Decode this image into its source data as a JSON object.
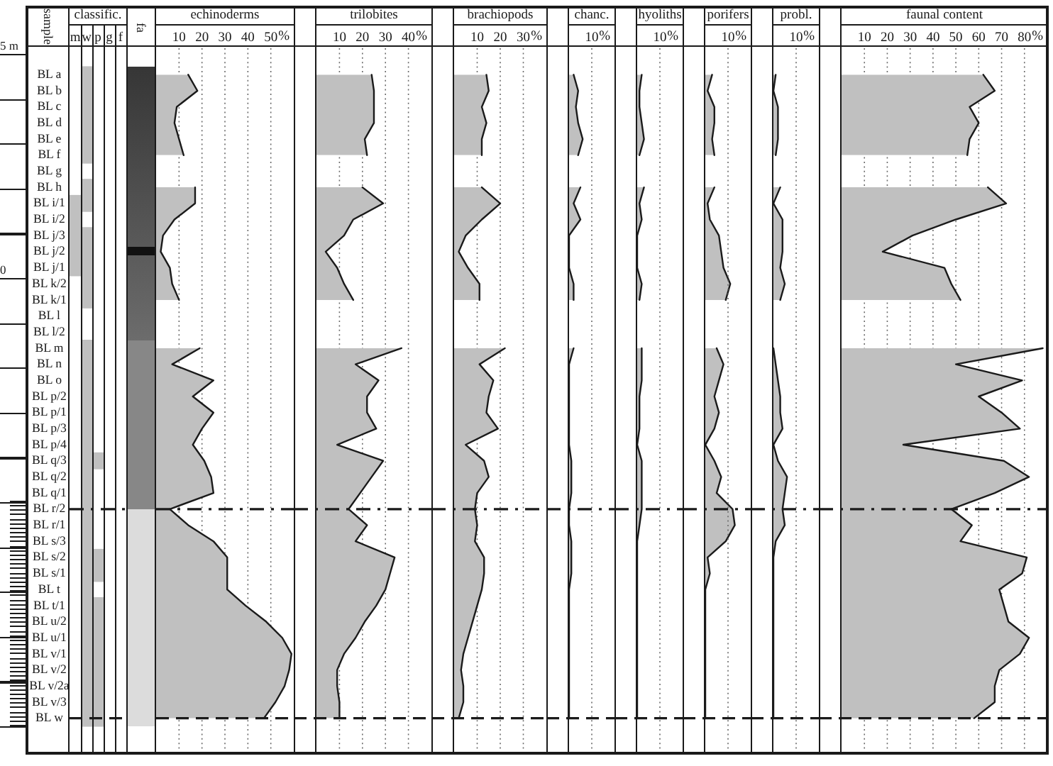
{
  "chart_data": [
    {
      "type": "heatmap",
      "title": "classific.",
      "ylabel": "sample",
      "categories": [
        "m",
        "w",
        "p",
        "g",
        "f"
      ],
      "y_categories": [
        "BL a",
        "BL b",
        "BL c",
        "BL d",
        "BL e",
        "BL f",
        "BL g",
        "BL h",
        "BL i/1",
        "BL i/2",
        "BL j/3",
        "BL j/2",
        "BL j/1",
        "BL k/2",
        "BL k/1",
        "BL l",
        "BL l/2",
        "BL m",
        "BL n",
        "BL o",
        "BL p/2",
        "BL p/1",
        "BL p/3",
        "BL p/4",
        "BL q/3",
        "BL q/2",
        "BL q/1",
        "BL r/2",
        "BL r/1",
        "BL s/3",
        "BL s/2",
        "BL s/1",
        "BL t",
        "BL t/1",
        "BL u/2",
        "BL u/1",
        "BL v/1",
        "BL v/2",
        "BL v/2a",
        "BL v/3",
        "BL w"
      ],
      "cells": [
        [
          null,
          true,
          null,
          null,
          null
        ],
        [
          null,
          true,
          null,
          null,
          null
        ],
        [
          null,
          true,
          null,
          null,
          null
        ],
        [
          null,
          true,
          null,
          null,
          null
        ],
        [
          null,
          true,
          null,
          null,
          null
        ],
        [
          null,
          true,
          null,
          null,
          null
        ],
        [
          null,
          null,
          null,
          null,
          null
        ],
        [
          null,
          true,
          null,
          null,
          null
        ],
        [
          true,
          true,
          null,
          null,
          null
        ],
        [
          true,
          null,
          null,
          null,
          null
        ],
        [
          true,
          true,
          null,
          null,
          null
        ],
        [
          true,
          true,
          null,
          null,
          null
        ],
        [
          true,
          true,
          null,
          null,
          null
        ],
        [
          null,
          true,
          null,
          null,
          null
        ],
        [
          null,
          true,
          null,
          null,
          null
        ],
        [
          null,
          null,
          null,
          null,
          null
        ],
        [
          null,
          null,
          null,
          null,
          null
        ],
        [
          null,
          true,
          null,
          null,
          null
        ],
        [
          null,
          true,
          null,
          null,
          null
        ],
        [
          null,
          true,
          null,
          null,
          null
        ],
        [
          null,
          true,
          null,
          null,
          null
        ],
        [
          null,
          true,
          null,
          null,
          null
        ],
        [
          null,
          true,
          null,
          null,
          null
        ],
        [
          null,
          true,
          null,
          null,
          null
        ],
        [
          null,
          true,
          true,
          null,
          null
        ],
        [
          null,
          true,
          null,
          null,
          null
        ],
        [
          null,
          true,
          null,
          null,
          null
        ],
        [
          null,
          true,
          null,
          null,
          null
        ],
        [
          null,
          true,
          null,
          null,
          null
        ],
        [
          null,
          true,
          null,
          null,
          null
        ],
        [
          null,
          true,
          true,
          null,
          null
        ],
        [
          null,
          true,
          true,
          null,
          null
        ],
        [
          null,
          true,
          null,
          null,
          null
        ],
        [
          null,
          true,
          true,
          null,
          null
        ],
        [
          null,
          true,
          true,
          null,
          null
        ],
        [
          null,
          true,
          true,
          null,
          null
        ],
        [
          null,
          true,
          true,
          null,
          null
        ],
        [
          null,
          true,
          true,
          null,
          null
        ],
        [
          null,
          true,
          true,
          null,
          null
        ],
        [
          null,
          true,
          true,
          null,
          null
        ],
        [
          null,
          true,
          true,
          null,
          null
        ]
      ],
      "color": "#c0c0c0",
      "ref_lines": [
        {
          "axis": "y",
          "value": "BL r/2",
          "line_style": "dashdot"
        },
        {
          "axis": "y",
          "value": "BL w",
          "line_style": "dashed"
        }
      ],
      "annotations": [
        "5 m",
        "0"
      ]
    },
    {
      "type": "other",
      "title": "fa"
    },
    {
      "type": "area",
      "orientation": "horizontal",
      "title": "echinoderms",
      "xlabel": "%",
      "categories": [
        "BL a",
        "BL b",
        "BL c",
        "BL d",
        "BL e",
        "BL f",
        "BL g",
        "BL h",
        "BL i/1",
        "BL i/2",
        "BL j/3",
        "BL j/2",
        "BL j/1",
        "BL k/2",
        "BL k/1",
        "BL l",
        "BL l/2",
        "BL m",
        "BL n",
        "BL o",
        "BL p/2",
        "BL p/1",
        "BL p/3",
        "BL p/4",
        "BL q/3",
        "BL q/2",
        "BL q/1",
        "BL r/2",
        "BL r/1",
        "BL s/3",
        "BL s/2",
        "BL s/1",
        "BL t",
        "BL t/1",
        "BL u/2",
        "BL u/1",
        "BL v/1",
        "BL v/2",
        "BL v/2a",
        "BL v/3",
        "BL w"
      ],
      "values": [
        14,
        18,
        9,
        8,
        10,
        12,
        null,
        17,
        17,
        8,
        3,
        2,
        6,
        7,
        10,
        null,
        null,
        19,
        7,
        25,
        16,
        25,
        20,
        16,
        21,
        24,
        25,
        6,
        14,
        25,
        31,
        31,
        31,
        39,
        48,
        55,
        59,
        58,
        56,
        52,
        47
      ],
      "color": "#c0c0c0",
      "xlim": [
        0,
        60
      ],
      "xticks": [
        10,
        20,
        30,
        40,
        50
      ],
      "grid": "x",
      "tick_labels": "x",
      "ref_lines": [
        {
          "axis": "y",
          "value": "BL r/2",
          "line_style": "dashdot"
        },
        {
          "axis": "y",
          "value": "BL w",
          "line_style": "dashed"
        }
      ]
    },
    {
      "type": "area",
      "orientation": "horizontal",
      "title": "trilobites",
      "xlabel": "%",
      "categories": [
        "BL a",
        "BL b",
        "BL c",
        "BL d",
        "BL e",
        "BL f",
        "BL g",
        "BL h",
        "BL i/1",
        "BL i/2",
        "BL j/3",
        "BL j/2",
        "BL j/1",
        "BL k/2",
        "BL k/1",
        "BL l",
        "BL l/2",
        "BL m",
        "BL n",
        "BL o",
        "BL p/2",
        "BL p/1",
        "BL p/3",
        "BL p/4",
        "BL q/3",
        "BL q/2",
        "BL q/1",
        "BL r/2",
        "BL r/1",
        "BL s/3",
        "BL s/2",
        "BL s/1",
        "BL t",
        "BL t/1",
        "BL u/2",
        "BL u/1",
        "BL v/1",
        "BL v/2",
        "BL v/2a",
        "BL v/3",
        "BL w"
      ],
      "values": [
        24,
        25,
        25,
        25,
        21,
        22,
        null,
        20,
        29,
        16,
        12,
        4,
        9,
        12,
        16,
        null,
        null,
        37,
        17,
        27,
        22,
        22,
        26,
        9,
        29,
        24,
        19,
        14,
        22,
        17,
        34,
        32,
        30,
        26,
        21,
        17,
        12,
        9,
        9,
        10,
        10
      ],
      "color": "#c0c0c0",
      "xlim": [
        0,
        50
      ],
      "xticks": [
        10,
        20,
        30,
        40
      ],
      "grid": "x",
      "tick_labels": "x",
      "ref_lines": [
        {
          "axis": "y",
          "value": "BL r/2",
          "line_style": "dashdot"
        },
        {
          "axis": "y",
          "value": "BL w",
          "line_style": "dashed"
        }
      ]
    },
    {
      "type": "area",
      "orientation": "horizontal",
      "title": "brachiopods",
      "xlabel": "%",
      "categories": [
        "BL a",
        "BL b",
        "BL c",
        "BL d",
        "BL e",
        "BL f",
        "BL g",
        "BL h",
        "BL i/1",
        "BL i/2",
        "BL j/3",
        "BL j/2",
        "BL j/1",
        "BL k/2",
        "BL k/1",
        "BL l",
        "BL l/2",
        "BL m",
        "BL n",
        "BL o",
        "BL p/2",
        "BL p/1",
        "BL p/3",
        "BL p/4",
        "BL q/3",
        "BL q/2",
        "BL q/1",
        "BL r/2",
        "BL r/1",
        "BL s/3",
        "BL s/2",
        "BL s/1",
        "BL t",
        "BL t/1",
        "BL u/2",
        "BL u/1",
        "BL v/1",
        "BL v/2",
        "BL v/2a",
        "BL v/3",
        "BL w"
      ],
      "values": [
        14,
        15,
        12,
        14,
        12,
        12,
        null,
        12,
        20,
        12,
        5,
        2,
        6,
        11,
        11,
        null,
        null,
        22,
        11,
        17,
        15,
        14,
        19,
        5,
        13,
        15,
        10,
        9,
        10,
        9,
        13,
        13,
        12,
        10,
        8,
        6,
        4,
        3,
        4,
        4,
        2
      ],
      "color": "#c0c0c0",
      "xlim": [
        0,
        40
      ],
      "xticks": [
        10,
        20,
        30
      ],
      "grid": "x",
      "tick_labels": "x",
      "ref_lines": [
        {
          "axis": "y",
          "value": "BL r/2",
          "line_style": "dashdot"
        },
        {
          "axis": "y",
          "value": "BL w",
          "line_style": "dashed"
        }
      ]
    },
    {
      "type": "area",
      "orientation": "horizontal",
      "title": "chanc.",
      "xlabel": "%",
      "categories": [
        "BL a",
        "BL b",
        "BL c",
        "BL d",
        "BL e",
        "BL f",
        "BL g",
        "BL h",
        "BL i/1",
        "BL i/2",
        "BL j/3",
        "BL j/2",
        "BL j/1",
        "BL k/2",
        "BL k/1",
        "BL l",
        "BL l/2",
        "BL m",
        "BL n",
        "BL o",
        "BL p/2",
        "BL p/1",
        "BL p/3",
        "BL p/4",
        "BL q/3",
        "BL q/2",
        "BL q/1",
        "BL r/2",
        "BL r/1",
        "BL s/3",
        "BL s/2",
        "BL s/1",
        "BL t",
        "BL t/1",
        "BL u/2",
        "BL u/1",
        "BL v/1",
        "BL v/2",
        "BL v/2a",
        "BL v/3",
        "BL w"
      ],
      "values": [
        2,
        4,
        3,
        4,
        6,
        4,
        null,
        5,
        2,
        5,
        0,
        0,
        0,
        2,
        2,
        null,
        null,
        2,
        0,
        0,
        0,
        0,
        0,
        0,
        1,
        1,
        1,
        0,
        0,
        1,
        1,
        1,
        0,
        0,
        0,
        0,
        0,
        0,
        0,
        0,
        0
      ],
      "color": "#c0c0c0",
      "xlim": [
        0,
        20
      ],
      "xticks": [
        10
      ],
      "tick_labels": "x",
      "ref_lines": [
        {
          "axis": "x",
          "value": 10,
          "line_style": "dotted",
          "color": "#6a6a6a"
        },
        {
          "axis": "y",
          "value": "BL r/2",
          "line_style": "dashdot"
        },
        {
          "axis": "y",
          "value": "BL w",
          "line_style": "dashed"
        }
      ]
    },
    {
      "type": "area",
      "orientation": "horizontal",
      "title": "hyoliths",
      "xlabel": "%",
      "categories": [
        "BL a",
        "BL b",
        "BL c",
        "BL d",
        "BL e",
        "BL f",
        "BL g",
        "BL h",
        "BL i/1",
        "BL i/2",
        "BL j/3",
        "BL j/2",
        "BL j/1",
        "BL k/2",
        "BL k/1",
        "BL l",
        "BL l/2",
        "BL m",
        "BL n",
        "BL o",
        "BL p/2",
        "BL p/1",
        "BL p/3",
        "BL p/4",
        "BL q/3",
        "BL q/2",
        "BL q/1",
        "BL r/2",
        "BL r/1",
        "BL s/3",
        "BL s/2",
        "BL s/1",
        "BL t",
        "BL t/1",
        "BL u/2",
        "BL u/1",
        "BL v/1",
        "BL v/2",
        "BL v/2a",
        "BL v/3",
        "BL w"
      ],
      "values": [
        2,
        1,
        1,
        2,
        3,
        1,
        null,
        3,
        1,
        2,
        0,
        0,
        0,
        2,
        1,
        null,
        null,
        2,
        2,
        2,
        1,
        1,
        1,
        0,
        2,
        2,
        2,
        2,
        1,
        0,
        0,
        0,
        0,
        0,
        0,
        0,
        0,
        0,
        0,
        0,
        0
      ],
      "color": "#c0c0c0",
      "xlim": [
        0,
        20
      ],
      "xticks": [
        10
      ],
      "tick_labels": "x",
      "ref_lines": [
        {
          "axis": "x",
          "value": 10,
          "line_style": "dotted",
          "color": "#6a6a6a"
        },
        {
          "axis": "y",
          "value": "BL r/2",
          "line_style": "dashdot"
        },
        {
          "axis": "y",
          "value": "BL w",
          "line_style": "dashed"
        }
      ]
    },
    {
      "type": "area",
      "orientation": "horizontal",
      "title": "porifers",
      "xlabel": "%",
      "categories": [
        "BL a",
        "BL b",
        "BL c",
        "BL d",
        "BL e",
        "BL f",
        "BL g",
        "BL h",
        "BL i/1",
        "BL i/2",
        "BL j/3",
        "BL j/2",
        "BL j/1",
        "BL k/2",
        "BL k/1",
        "BL l",
        "BL l/2",
        "BL m",
        "BL n",
        "BL o",
        "BL p/2",
        "BL p/1",
        "BL p/3",
        "BL p/4",
        "BL q/3",
        "BL q/2",
        "BL q/1",
        "BL r/2",
        "BL r/1",
        "BL s/3",
        "BL s/2",
        "BL s/1",
        "BL t",
        "BL t/1",
        "BL u/2",
        "BL u/1",
        "BL v/1",
        "BL v/2",
        "BL v/2a",
        "BL v/3",
        "BL w"
      ],
      "values": [
        3,
        1,
        4,
        4,
        3,
        4,
        null,
        4,
        1,
        2,
        6,
        7,
        8,
        11,
        9,
        null,
        null,
        5,
        8,
        6,
        4,
        6,
        4,
        0,
        4,
        7,
        5,
        12,
        13,
        9,
        1,
        2,
        0,
        0,
        0,
        0,
        0,
        0,
        0,
        0,
        0
      ],
      "color": "#c0c0c0",
      "xlim": [
        0,
        20
      ],
      "xticks": [
        10
      ],
      "tick_labels": "x",
      "ref_lines": [
        {
          "axis": "x",
          "value": 10,
          "line_style": "dotted",
          "color": "#6a6a6a"
        },
        {
          "axis": "y",
          "value": "BL r/2",
          "line_style": "dashdot"
        },
        {
          "axis": "y",
          "value": "BL w",
          "line_style": "dashed"
        }
      ]
    },
    {
      "type": "area",
      "orientation": "horizontal",
      "title": "probl.",
      "xlabel": "%",
      "categories": [
        "BL a",
        "BL b",
        "BL c",
        "BL d",
        "BL e",
        "BL f",
        "BL g",
        "BL h",
        "BL i/1",
        "BL i/2",
        "BL j/3",
        "BL j/2",
        "BL j/1",
        "BL k/2",
        "BL k/1",
        "BL l",
        "BL l/2",
        "BL m",
        "BL n",
        "BL o",
        "BL p/2",
        "BL p/1",
        "BL p/3",
        "BL p/4",
        "BL q/3",
        "BL q/2",
        "BL q/1",
        "BL r/2",
        "BL r/1",
        "BL s/3",
        "BL s/2",
        "BL s/1",
        "BL t",
        "BL t/1",
        "BL u/2",
        "BL u/1",
        "BL v/1",
        "BL v/2",
        "BL v/2a",
        "BL v/3",
        "BL w"
      ],
      "values": [
        1,
        0,
        2,
        2,
        2,
        1,
        null,
        3,
        0,
        4,
        4,
        4,
        3,
        5,
        3,
        null,
        null,
        0,
        1,
        2,
        3,
        3,
        4,
        0,
        2,
        6,
        5,
        4,
        5,
        1,
        0,
        0,
        0,
        0,
        0,
        0,
        0,
        0,
        0,
        0,
        0
      ],
      "color": "#c0c0c0",
      "xlim": [
        0,
        20
      ],
      "xticks": [
        10
      ],
      "tick_labels": "x",
      "ref_lines": [
        {
          "axis": "x",
          "value": 10,
          "line_style": "dotted",
          "color": "#6a6a6a"
        },
        {
          "axis": "y",
          "value": "BL r/2",
          "line_style": "dashdot"
        },
        {
          "axis": "y",
          "value": "BL w",
          "line_style": "dashed"
        }
      ]
    },
    {
      "type": "area",
      "orientation": "horizontal",
      "title": "faunal content",
      "xlabel": "%",
      "categories": [
        "BL a",
        "BL b",
        "BL c",
        "BL d",
        "BL e",
        "BL f",
        "BL g",
        "BL h",
        "BL i/1",
        "BL i/2",
        "BL j/3",
        "BL j/2",
        "BL j/1",
        "BL k/2",
        "BL k/1",
        "BL l",
        "BL l/2",
        "BL m",
        "BL n",
        "BL o",
        "BL p/2",
        "BL p/1",
        "BL p/3",
        "BL p/4",
        "BL q/3",
        "BL q/2",
        "BL q/1",
        "BL r/2",
        "BL r/1",
        "BL s/3",
        "BL s/2",
        "BL s/1",
        "BL t",
        "BL t/1",
        "BL u/2",
        "BL u/1",
        "BL v/1",
        "BL v/2",
        "BL v/2a",
        "BL v/3",
        "BL w"
      ],
      "values": [
        62,
        67,
        56,
        60,
        56,
        55,
        null,
        64,
        72,
        50,
        31,
        18,
        45,
        48,
        52,
        null,
        null,
        88,
        50,
        79,
        60,
        70,
        78,
        27,
        71,
        82,
        67,
        48,
        57,
        52,
        81,
        79,
        69,
        71,
        73,
        82,
        78,
        69,
        67,
        67,
        58
      ],
      "color": "#c0c0c0",
      "xlim": [
        0,
        90
      ],
      "xticks": [
        10,
        20,
        30,
        40,
        50,
        60,
        70,
        80
      ],
      "grid": "x",
      "tick_labels": "x",
      "ref_lines": [
        {
          "axis": "y",
          "value": "BL r/2",
          "line_style": "dashdot"
        },
        {
          "axis": "y",
          "value": "BL w",
          "line_style": "dashed"
        }
      ]
    }
  ]
}
